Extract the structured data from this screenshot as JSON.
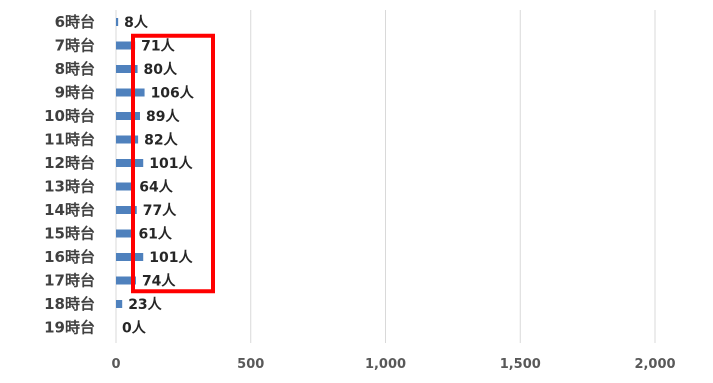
{
  "chart_data": {
    "type": "bar",
    "orientation": "horizontal",
    "categories": [
      "6時台",
      "7時台",
      "8時台",
      "9時台",
      "10時台",
      "11時台",
      "12時台",
      "13時台",
      "14時台",
      "15時台",
      "16時台",
      "17時台",
      "18時台",
      "19時台"
    ],
    "values": [
      8,
      71,
      80,
      106,
      89,
      82,
      101,
      64,
      77,
      61,
      101,
      74,
      23,
      0
    ],
    "data_labels": [
      "8人",
      "71人",
      "80人",
      "106人",
      "89人",
      "82人",
      "101人",
      "64人",
      "77人",
      "61人",
      "101人",
      "74人",
      "23人",
      "0人"
    ],
    "x_ticks": [
      "0",
      "500",
      "1,000",
      "1,500",
      "2,000"
    ],
    "x_tick_values": [
      0,
      500,
      1000,
      1500,
      2000
    ],
    "xlim": [
      0,
      2000
    ],
    "grid": "vertical",
    "legend": "none",
    "title": "",
    "xlabel": "",
    "ylabel": "",
    "highlight": "box around 7時台–17時台 data labels",
    "colors": {
      "bar": "#4f81bd",
      "highlight_box": "#ff0000",
      "grid": "#d9d9d9"
    }
  }
}
